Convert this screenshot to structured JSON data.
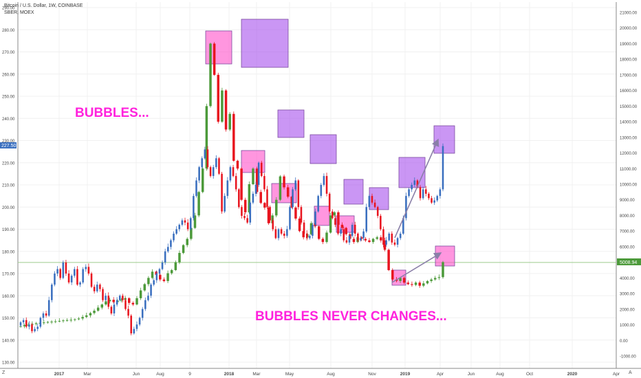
{
  "header": {
    "symbol_line": "Bitcoin / U.S. Dollar, 1W, COINBASE",
    "compare_line": "SBER, MOEX"
  },
  "badges": {
    "left_price": "227.50",
    "right_price": "5008.94"
  },
  "annotations": {
    "top_text": "BUBBLES...",
    "bottom_text": "BUBBLES NEVER CHANGES..."
  },
  "corner": {
    "left": "Z",
    "right": "A"
  },
  "chart_data": {
    "type": "candlestick",
    "left_axis": {
      "series": "SBER",
      "range": [
        127,
        292
      ],
      "ticks": [
        "130.00",
        "140.00",
        "150.00",
        "160.00",
        "170.00",
        "180.00",
        "190.00",
        "200.00",
        "210.00",
        "220.00",
        "230.00",
        "240.00",
        "250.00",
        "260.00",
        "270.00",
        "280.00",
        "290.00"
      ]
    },
    "right_axis": {
      "series": "Bitcoin",
      "range": [
        -1200,
        21500
      ],
      "ticks": [
        "-1000.00",
        "0.00",
        "1000.00",
        "2000.00",
        "3000.00",
        "4000.00",
        "5000.00",
        "6000.00",
        "7000.00",
        "8000.00",
        "9000.00",
        "10000.00",
        "11000.00",
        "12000.00",
        "13000.00",
        "14000.00",
        "15000.00",
        "16000.00",
        "17000.00",
        "18000.00",
        "19000.00",
        "20000.00",
        "21000.00"
      ]
    },
    "x_labels": [
      "2017",
      "Mar",
      "Jun",
      "Aug",
      "9",
      "2018",
      "Mar",
      "May",
      "Aug",
      "Nov",
      "2019",
      "Apr",
      "Jun",
      "Aug",
      "Oct",
      "2020",
      "Apr"
    ],
    "horizontal_line": {
      "value": 175,
      "color": "#9ccb8c"
    },
    "colors": {
      "sber_up": "#3a6fbf",
      "sber_down": "#e8151f",
      "btc_up": "#4c9a3a",
      "btc_down": "#e8151f",
      "box_pink": "#ff55cc",
      "box_purple": "#aa55ee",
      "arrow": "#8a7fa8",
      "badge_blue": "#3a6fbf",
      "badge_green": "#4c9a3a"
    },
    "sber_weekly_close": [
      148,
      149,
      146,
      147,
      144,
      145,
      146,
      150,
      152,
      151,
      158,
      165,
      170,
      172,
      168,
      175,
      170,
      166,
      169,
      172,
      165,
      166,
      172,
      173,
      170,
      164,
      162,
      165,
      163,
      158,
      160,
      155,
      152,
      156,
      158,
      160,
      158,
      154,
      151,
      143,
      145,
      147,
      150,
      154,
      158,
      160,
      165,
      167,
      170,
      172,
      175,
      180,
      182,
      185,
      188,
      190,
      192,
      194,
      193,
      190,
      195,
      205,
      212,
      218,
      222,
      226,
      218,
      214,
      218,
      222,
      215,
      198,
      205,
      212,
      218,
      214,
      208,
      200,
      196,
      195,
      193,
      202,
      206,
      210,
      220,
      214,
      208,
      200,
      194,
      190,
      186,
      190,
      188,
      187,
      190,
      200,
      208,
      212,
      200,
      193,
      188,
      186,
      187,
      192,
      198,
      205,
      210,
      214,
      206,
      198,
      195,
      192,
      188,
      190,
      185,
      184,
      187,
      192,
      188,
      185,
      186,
      189,
      200,
      205,
      202,
      200,
      196,
      190,
      183,
      185,
      188,
      184,
      183,
      186,
      188,
      195,
      205,
      208,
      210,
      212,
      209,
      204,
      208,
      206,
      204,
      202,
      203,
      205,
      208,
      227.5
    ],
    "bitcoin_weekly_close": [
      900,
      980,
      1000,
      1050,
      1100,
      1120,
      1150,
      1180,
      1200,
      1220,
      1250,
      1280,
      1300,
      1320,
      1350,
      1400,
      1500,
      1600,
      1750,
      1900,
      2100,
      2300,
      2500,
      2600,
      2450,
      2550,
      2600,
      2700,
      2400,
      2300,
      2700,
      3200,
      3600,
      4000,
      4400,
      4200,
      3900,
      3800,
      4300,
      4500,
      5000,
      5600,
      6100,
      6500,
      7200,
      8000,
      9500,
      11000,
      15000,
      19000,
      17000,
      14000,
      16000,
      13500,
      14500,
      11500,
      11000,
      9000,
      8200,
      10000,
      11000,
      9500,
      8800,
      8500,
      7500,
      8000,
      9000,
      10500,
      9800,
      9200,
      8500,
      7800,
      7000,
      6600,
      6800,
      7500,
      7300,
      6500,
      6300,
      6900,
      8000,
      8200,
      7400,
      7200,
      6800,
      6500,
      6300,
      6600,
      6500,
      6400,
      6300,
      6500,
      6600,
      6400,
      5800,
      4500,
      3900,
      3800,
      4000,
      3700,
      3600,
      3550,
      3700,
      3500,
      3650,
      3800,
      3900,
      4000,
      4050,
      5008.94
    ]
  }
}
